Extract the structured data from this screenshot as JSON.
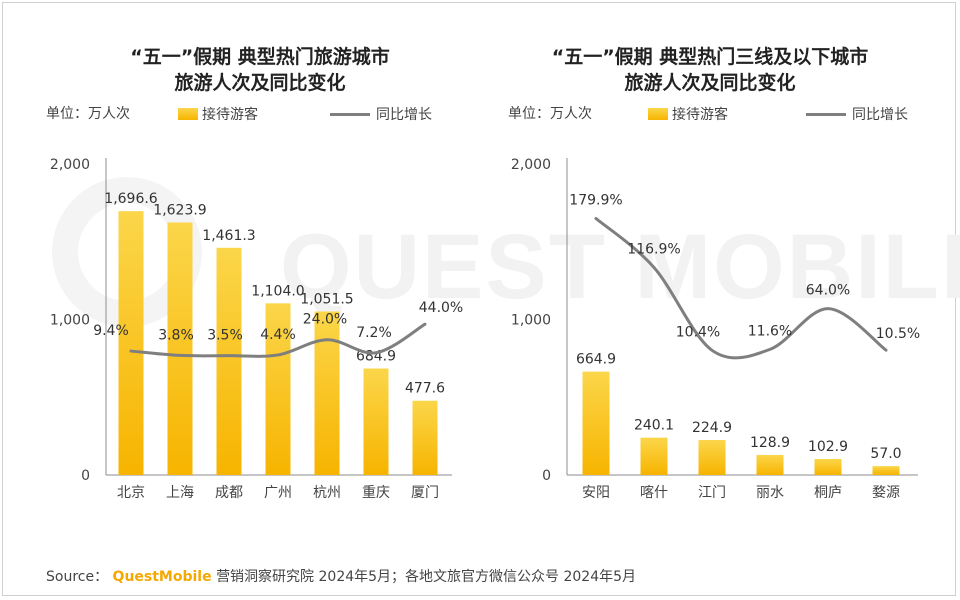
{
  "footer": {
    "source_label": "Source：",
    "brand": "QuestMobile",
    "text": "营销洞察研究院 2024年5月；各地文旅官方微信公众号 2024年5月"
  },
  "watermark": {
    "text": "QUEST MOBILE"
  },
  "colors": {
    "bar_top": "#fbd64a",
    "bar_bottom": "#f7b400",
    "line": "#7f7f7f",
    "axis": "#8c8c8c"
  },
  "chart_data": [
    {
      "type": "bar",
      "title": "“五一”假期 典型热门旅游城市",
      "subtitle": "旅游人次及同比变化",
      "unit_label": "单位：万人次",
      "legend": {
        "bar": "接待游客",
        "line": "同比增长"
      },
      "categories": [
        "北京",
        "上海",
        "成都",
        "广州",
        "杭州",
        "重庆",
        "厦门"
      ],
      "series": [
        {
          "name": "接待游客",
          "kind": "bar",
          "values": [
            1696.6,
            1623.9,
            1461.3,
            1104.0,
            1051.5,
            684.9,
            477.6
          ],
          "labels": [
            "1,696.6",
            "1,623.9",
            "1,461.3",
            "1,104.0",
            "1,051.5",
            "684.9",
            "477.6"
          ]
        },
        {
          "name": "同比增长",
          "kind": "line",
          "values": [
            9.4,
            3.8,
            3.5,
            4.4,
            24.0,
            7.2,
            44.0
          ],
          "labels": [
            "9.4%",
            "3.8%",
            "3.5%",
            "4.4%",
            "24.0%",
            "7.2%",
            "44.0%"
          ]
        }
      ],
      "ylim": [
        0,
        2000
      ],
      "yticks": [
        0,
        1000,
        2000
      ],
      "ytick_labels": [
        "0",
        "1,000",
        "2,000"
      ],
      "line_ylim": [
        -150,
        250
      ]
    },
    {
      "type": "bar",
      "title": "“五一”假期 典型热门三线及以下城市",
      "subtitle": "旅游人次及同比变化",
      "unit_label": "单位：万人次",
      "legend": {
        "bar": "接待游客",
        "line": "同比增长"
      },
      "categories": [
        "安阳",
        "喀什",
        "江门",
        "丽水",
        "桐庐",
        "婺源"
      ],
      "series": [
        {
          "name": "接待游客",
          "kind": "bar",
          "values": [
            664.9,
            240.1,
            224.9,
            128.9,
            102.9,
            57.0
          ],
          "labels": [
            "664.9",
            "240.1",
            "224.9",
            "128.9",
            "102.9",
            "57.0"
          ]
        },
        {
          "name": "同比增长",
          "kind": "line",
          "values": [
            179.9,
            116.9,
            10.4,
            11.6,
            64.0,
            10.5
          ],
          "labels": [
            "179.9%",
            "116.9%",
            "10.4%",
            "11.6%",
            "64.0%",
            "10.5%"
          ]
        }
      ],
      "ylim": [
        0,
        2000
      ],
      "yticks": [
        0,
        1000,
        2000
      ],
      "ytick_labels": [
        "0",
        "1,000",
        "2,000"
      ],
      "line_ylim": [
        -150,
        250
      ]
    }
  ]
}
